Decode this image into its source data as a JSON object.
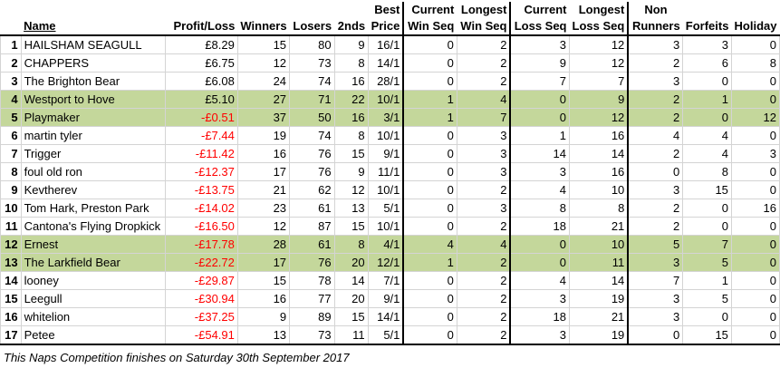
{
  "headers": {
    "rank": "",
    "name": "Name",
    "profit": "Profit/Loss",
    "winners": "Winners",
    "losers": "Losers",
    "seconds": "2nds",
    "best_price_1": "Best",
    "best_price_2": "Price",
    "cur_win_1": "Current",
    "cur_win_2": "Win Seq",
    "long_win_1": "Longest",
    "long_win_2": "Win Seq",
    "cur_loss_1": "Current",
    "cur_loss_2": "Loss Seq",
    "long_loss_1": "Longest",
    "long_loss_2": "Loss Seq",
    "nonrun_1": "Non",
    "nonrun_2": "Runners",
    "forfeits": "Forfeits",
    "holiday": "Holiday"
  },
  "rows": [
    {
      "rank": "1",
      "name": "HAILSHAM SEAGULL",
      "profit": "£8.29",
      "neg": false,
      "winners": "15",
      "losers": "80",
      "seconds": "9",
      "best": "16/1",
      "cur_win": "0",
      "long_win": "2",
      "cur_loss": "3",
      "long_loss": "12",
      "nonrun": "3",
      "forfeits": "3",
      "holiday": "0",
      "green": false
    },
    {
      "rank": "2",
      "name": "CHAPPERS",
      "profit": "£6.75",
      "neg": false,
      "winners": "12",
      "losers": "73",
      "seconds": "8",
      "best": "14/1",
      "cur_win": "0",
      "long_win": "2",
      "cur_loss": "9",
      "long_loss": "12",
      "nonrun": "2",
      "forfeits": "6",
      "holiday": "8",
      "green": false
    },
    {
      "rank": "3",
      "name": "The Brighton Bear",
      "profit": "£6.08",
      "neg": false,
      "winners": "24",
      "losers": "74",
      "seconds": "16",
      "best": "28/1",
      "cur_win": "0",
      "long_win": "2",
      "cur_loss": "7",
      "long_loss": "7",
      "nonrun": "3",
      "forfeits": "0",
      "holiday": "0",
      "green": false
    },
    {
      "rank": "4",
      "name": "Westport to Hove",
      "profit": "£5.10",
      "neg": false,
      "winners": "27",
      "losers": "71",
      "seconds": "22",
      "best": "10/1",
      "cur_win": "1",
      "long_win": "4",
      "cur_loss": "0",
      "long_loss": "9",
      "nonrun": "2",
      "forfeits": "1",
      "holiday": "0",
      "green": true
    },
    {
      "rank": "5",
      "name": "Playmaker",
      "profit": "-£0.51",
      "neg": true,
      "winners": "37",
      "losers": "50",
      "seconds": "16",
      "best": "3/1",
      "cur_win": "1",
      "long_win": "7",
      "cur_loss": "0",
      "long_loss": "12",
      "nonrun": "2",
      "forfeits": "0",
      "holiday": "12",
      "green": true
    },
    {
      "rank": "6",
      "name": "martin tyler",
      "profit": "-£7.44",
      "neg": true,
      "winners": "19",
      "losers": "74",
      "seconds": "8",
      "best": "10/1",
      "cur_win": "0",
      "long_win": "3",
      "cur_loss": "1",
      "long_loss": "16",
      "nonrun": "4",
      "forfeits": "4",
      "holiday": "0",
      "green": false
    },
    {
      "rank": "7",
      "name": "Trigger",
      "profit": "-£11.42",
      "neg": true,
      "winners": "16",
      "losers": "76",
      "seconds": "15",
      "best": "9/1",
      "cur_win": "0",
      "long_win": "3",
      "cur_loss": "14",
      "long_loss": "14",
      "nonrun": "2",
      "forfeits": "4",
      "holiday": "3",
      "green": false
    },
    {
      "rank": "8",
      "name": "foul old ron",
      "profit": "-£12.37",
      "neg": true,
      "winners": "17",
      "losers": "76",
      "seconds": "9",
      "best": "11/1",
      "cur_win": "0",
      "long_win": "3",
      "cur_loss": "3",
      "long_loss": "16",
      "nonrun": "0",
      "forfeits": "8",
      "holiday": "0",
      "green": false
    },
    {
      "rank": "9",
      "name": "Kevtherev",
      "profit": "-£13.75",
      "neg": true,
      "winners": "21",
      "losers": "62",
      "seconds": "12",
      "best": "10/1",
      "cur_win": "0",
      "long_win": "2",
      "cur_loss": "4",
      "long_loss": "10",
      "nonrun": "3",
      "forfeits": "15",
      "holiday": "0",
      "green": false
    },
    {
      "rank": "10",
      "name": "Tom Hark, Preston Park",
      "profit": "-£14.02",
      "neg": true,
      "winners": "23",
      "losers": "61",
      "seconds": "13",
      "best": "5/1",
      "cur_win": "0",
      "long_win": "3",
      "cur_loss": "8",
      "long_loss": "8",
      "nonrun": "2",
      "forfeits": "0",
      "holiday": "16",
      "green": false
    },
    {
      "rank": "11",
      "name": "Cantona's Flying Dropkick",
      "profit": "-£16.50",
      "neg": true,
      "winners": "12",
      "losers": "87",
      "seconds": "15",
      "best": "10/1",
      "cur_win": "0",
      "long_win": "2",
      "cur_loss": "18",
      "long_loss": "21",
      "nonrun": "2",
      "forfeits": "0",
      "holiday": "0",
      "green": false
    },
    {
      "rank": "12",
      "name": "Ernest",
      "profit": "-£17.78",
      "neg": true,
      "winners": "28",
      "losers": "61",
      "seconds": "8",
      "best": "4/1",
      "cur_win": "4",
      "long_win": "4",
      "cur_loss": "0",
      "long_loss": "10",
      "nonrun": "5",
      "forfeits": "7",
      "holiday": "0",
      "green": true
    },
    {
      "rank": "13",
      "name": "The Larkfield Bear",
      "profit": "-£22.72",
      "neg": true,
      "winners": "17",
      "losers": "76",
      "seconds": "20",
      "best": "12/1",
      "cur_win": "1",
      "long_win": "2",
      "cur_loss": "0",
      "long_loss": "11",
      "nonrun": "3",
      "forfeits": "5",
      "holiday": "0",
      "green": true
    },
    {
      "rank": "14",
      "name": "looney",
      "profit": "-£29.87",
      "neg": true,
      "winners": "15",
      "losers": "78",
      "seconds": "14",
      "best": "7/1",
      "cur_win": "0",
      "long_win": "2",
      "cur_loss": "4",
      "long_loss": "14",
      "nonrun": "7",
      "forfeits": "1",
      "holiday": "0",
      "green": false
    },
    {
      "rank": "15",
      "name": "Leegull",
      "profit": "-£30.94",
      "neg": true,
      "winners": "16",
      "losers": "77",
      "seconds": "20",
      "best": "9/1",
      "cur_win": "0",
      "long_win": "2",
      "cur_loss": "3",
      "long_loss": "19",
      "nonrun": "3",
      "forfeits": "5",
      "holiday": "0",
      "green": false
    },
    {
      "rank": "16",
      "name": "whitelion",
      "profit": "-£37.25",
      "neg": true,
      "winners": "9",
      "losers": "89",
      "seconds": "15",
      "best": "14/1",
      "cur_win": "0",
      "long_win": "2",
      "cur_loss": "18",
      "long_loss": "21",
      "nonrun": "3",
      "forfeits": "0",
      "holiday": "0",
      "green": false
    },
    {
      "rank": "17",
      "name": "Petee",
      "profit": "-£54.91",
      "neg": true,
      "winners": "13",
      "losers": "73",
      "seconds": "11",
      "best": "5/1",
      "cur_win": "0",
      "long_win": "2",
      "cur_loss": "3",
      "long_loss": "19",
      "nonrun": "0",
      "forfeits": "15",
      "holiday": "0",
      "green": false
    }
  ],
  "footer": "This Naps Competition finishes on Saturday 30th September 2017",
  "colors": {
    "green_row": "#c4d79b",
    "negative": "#ff0000"
  }
}
